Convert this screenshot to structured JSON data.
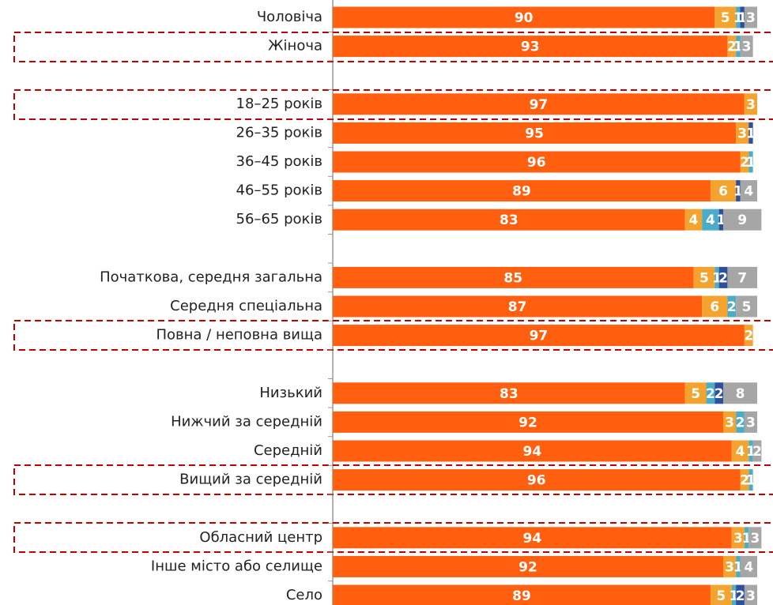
{
  "chart_data": {
    "type": "stacked-bar-horizontal",
    "categories": [
      "Чоловіча",
      "Жіноча",
      null,
      "18–25 років",
      "26–35 років",
      "36–45 років",
      "46–55 років",
      "56–65 років",
      null,
      "Початкова, середня загальна",
      "Середня спеціальна",
      "Повна / неповна  вища",
      null,
      "Низький",
      "Нижчий за середній",
      "Середній",
      "Вищий за середній",
      null,
      "Обласний центр",
      "Інше місто або селище",
      "Село"
    ],
    "xlim": [
      0,
      100
    ],
    "series": [
      {
        "color": "#ff5f0f",
        "values": [
          90,
          93,
          null,
          97,
          95,
          96,
          89,
          83,
          null,
          85,
          87,
          97,
          null,
          83,
          92,
          94,
          96,
          null,
          94,
          92,
          89
        ]
      },
      {
        "color": "#f5a32f",
        "values": [
          5,
          2,
          null,
          3,
          3,
          2,
          6,
          4,
          null,
          5,
          6,
          2,
          null,
          5,
          3,
          4,
          2,
          null,
          3,
          3,
          5
        ]
      },
      {
        "color": "#4bacc6",
        "values": [
          1,
          1,
          null,
          null,
          null,
          1,
          null,
          4,
          null,
          1,
          2,
          null,
          null,
          2,
          2,
          1,
          1,
          null,
          1,
          1,
          1
        ]
      },
      {
        "color": "#2e4e9e",
        "values": [
          1,
          null,
          null,
          null,
          1,
          null,
          1,
          1,
          null,
          2,
          null,
          null,
          null,
          2,
          null,
          null,
          null,
          null,
          null,
          null,
          2
        ]
      },
      {
        "color": "#a6a6a6",
        "values": [
          3,
          3,
          null,
          null,
          null,
          null,
          4,
          9,
          null,
          7,
          5,
          null,
          null,
          8,
          3,
          2,
          null,
          null,
          3,
          4,
          3
        ]
      }
    ]
  }
}
